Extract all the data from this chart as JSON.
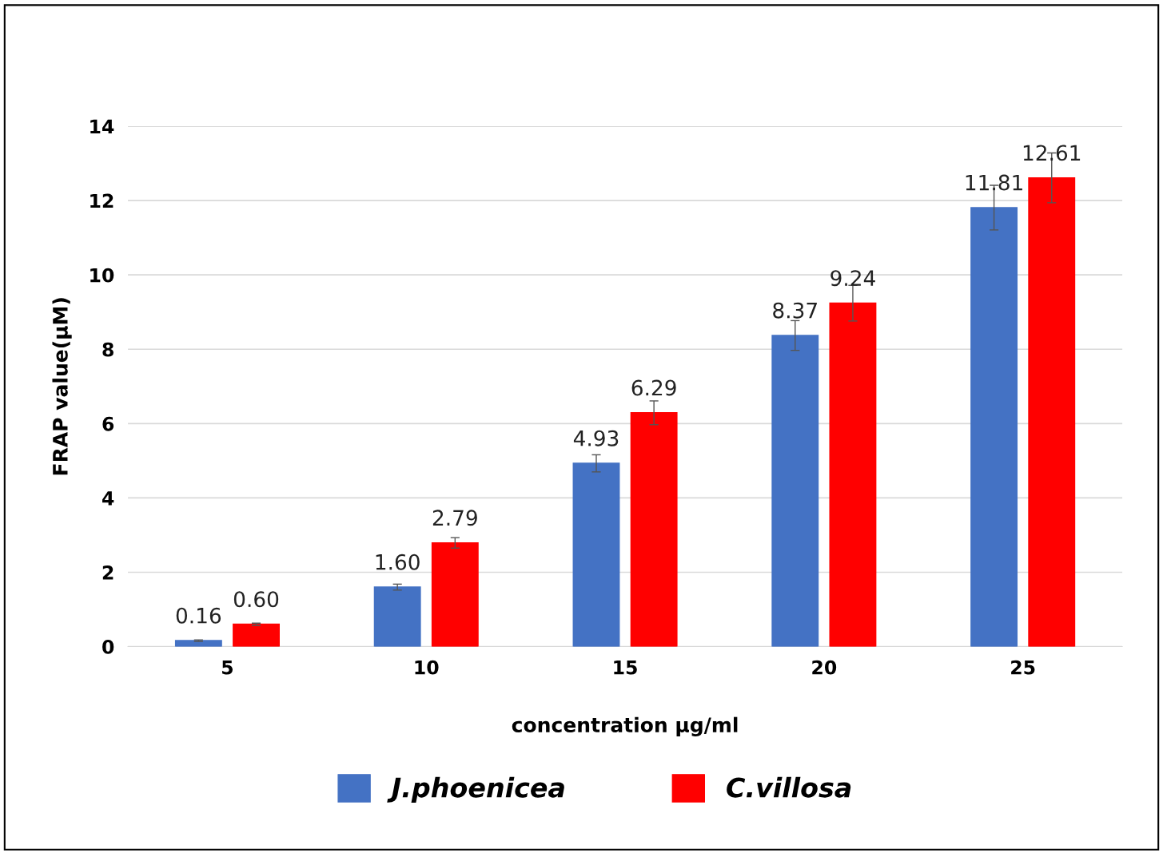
{
  "chart_data": {
    "type": "bar",
    "xlabel": "concentration µg/ml",
    "ylabel": "FRAP value(µM)",
    "categories": [
      "5",
      "10",
      "15",
      "20",
      "25"
    ],
    "series": [
      {
        "name": "J.phoenicea",
        "color": "#4472c4",
        "values": [
          0.16,
          1.6,
          4.93,
          8.37,
          11.81
        ],
        "errors": [
          0.02,
          0.08,
          0.23,
          0.4,
          0.6
        ],
        "value_labels": [
          "0.16",
          "1.60",
          "4.93",
          "8.37",
          "11.81"
        ]
      },
      {
        "name": "C.villosa",
        "color": "#ff0000",
        "values": [
          0.6,
          2.79,
          6.29,
          9.24,
          12.61
        ],
        "errors": [
          0.03,
          0.14,
          0.32,
          0.48,
          0.67
        ],
        "value_labels": [
          "0.60",
          "2.79",
          "6.29",
          "9.24",
          "12.61"
        ]
      }
    ],
    "ylim": [
      0,
      14
    ],
    "yticks": [
      0,
      2,
      4,
      6,
      8,
      10,
      12,
      14
    ],
    "grid": "y",
    "legend": "bottom"
  }
}
